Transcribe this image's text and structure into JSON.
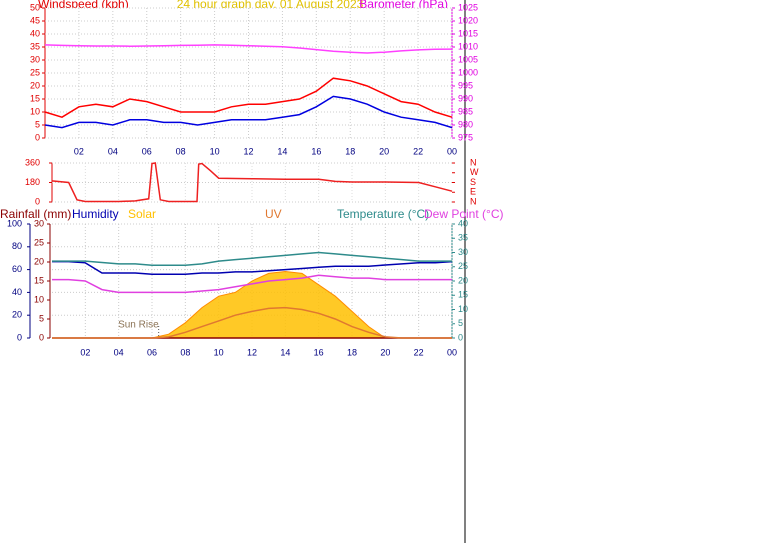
{
  "chart_data": [
    {
      "type": "line",
      "title": "24 hour graph day, 01 August 2023",
      "y_label": "Windspeed (kph)",
      "y2_label": "Barometer (hPa)",
      "x": [
        0,
        1,
        2,
        3,
        4,
        5,
        6,
        7,
        8,
        9,
        10,
        11,
        12,
        13,
        14,
        15,
        16,
        17,
        18,
        19,
        20,
        21,
        22,
        23,
        24
      ],
      "xlim": [
        0,
        24
      ],
      "xticks": [
        {
          "value": 2,
          "label": "02"
        },
        {
          "value": 4,
          "label": "04"
        },
        {
          "value": 6,
          "label": "06"
        },
        {
          "value": 8,
          "label": "08"
        },
        10,
        12,
        14,
        16,
        18,
        20,
        22,
        {
          "value": 24,
          "label": "00"
        }
      ],
      "ylim": [
        0,
        50
      ],
      "yticks": [
        0,
        5,
        10,
        15,
        20,
        25,
        30,
        35,
        40,
        45,
        50
      ],
      "y_color": "#e00000",
      "y2lim": [
        975,
        1025
      ],
      "y2ticks": [
        975,
        980,
        985,
        990,
        995,
        1000,
        1005,
        1010,
        1015,
        1020,
        1025
      ],
      "y2_color": "#e000e0",
      "grid": true,
      "series": [
        {
          "color": "#ff0000",
          "values": [
            10,
            8,
            12,
            13,
            12,
            15,
            14,
            12,
            10,
            10,
            10,
            12,
            13,
            13,
            14,
            15,
            18,
            23,
            22,
            20,
            17,
            14,
            13,
            10,
            8
          ]
        },
        {
          "color": "#0000e0",
          "values": [
            5,
            4,
            6,
            6,
            5,
            7,
            7,
            6,
            6,
            5,
            6,
            7,
            7,
            7,
            8,
            9,
            12,
            16,
            15,
            13,
            10,
            8,
            7,
            6,
            4
          ]
        },
        {
          "color": "#ff40ff",
          "axis": "y2",
          "values": [
            1010.8,
            1010.6,
            1010.5,
            1010.4,
            1010.4,
            1010.3,
            1010.4,
            1010.5,
            1010.6,
            1010.7,
            1010.8,
            1010.7,
            1010.5,
            1010.3,
            1010.1,
            1009.6,
            1009.0,
            1008.4,
            1008.0,
            1007.7,
            1008.0,
            1008.5,
            1008.9,
            1009.1,
            1009.2
          ]
        }
      ]
    },
    {
      "type": "line",
      "x": [
        0,
        1,
        1.5,
        2,
        3,
        4,
        5,
        5.8,
        6,
        6.2,
        6.5,
        7,
        8,
        8.7,
        8.8,
        9,
        9.5,
        10,
        12,
        14,
        16,
        17,
        18,
        20,
        22,
        23,
        24
      ],
      "xlim": [
        0,
        24
      ],
      "ylim": [
        0,
        360
      ],
      "yticks": [
        0,
        180,
        360
      ],
      "y_color": "#e00000",
      "y2lim": [
        0,
        360
      ],
      "y2ticks": [
        {
          "value": 0,
          "label": "N"
        },
        {
          "value": 90,
          "label": "E"
        },
        {
          "value": 180,
          "label": "S"
        },
        {
          "value": 270,
          "label": "W"
        },
        {
          "value": 360,
          "label": "N"
        }
      ],
      "y2_color": "#e00000",
      "grid": true,
      "series": [
        {
          "color": "#ee2020",
          "values": [
            195,
            180,
            20,
            5,
            5,
            5,
            10,
            30,
            355,
            360,
            20,
            5,
            5,
            5,
            350,
            355,
            290,
            220,
            215,
            210,
            210,
            190,
            185,
            185,
            180,
            140,
            100
          ]
        }
      ]
    },
    {
      "type": "line",
      "x": [
        0,
        1,
        2,
        3,
        4,
        5,
        6,
        7,
        8,
        9,
        10,
        11,
        12,
        13,
        14,
        15,
        16,
        17,
        18,
        19,
        20,
        21,
        22,
        23,
        24
      ],
      "xlim": [
        0,
        24
      ],
      "xticks": [
        {
          "value": 2,
          "label": "02"
        },
        {
          "value": 4,
          "label": "04"
        },
        {
          "value": 6,
          "label": "06"
        },
        {
          "value": 8,
          "label": "08"
        },
        10,
        12,
        14,
        16,
        18,
        20,
        22,
        {
          "value": 24,
          "label": "00"
        }
      ],
      "ylim": [
        0,
        100
      ],
      "yticks": [
        0,
        20,
        40,
        60,
        80,
        100
      ],
      "y_color": "#000080",
      "y3lim": [
        0,
        30
      ],
      "y3ticks": [
        0,
        5,
        10,
        15,
        20,
        25,
        30
      ],
      "y3_color": "#8b0000",
      "y2lim": [
        0,
        40
      ],
      "y2ticks": [
        0,
        5,
        10,
        15,
        20,
        25,
        30,
        35,
        40
      ],
      "y2_color": "#2e8b8b",
      "grid": true,
      "annotations": [
        {
          "text": "Sun Rise",
          "x": 6.4
        }
      ],
      "series": [
        {
          "name": "Rainfall (mm)",
          "color": "#8b0000",
          "axis": "y3",
          "values": [
            0,
            0,
            0,
            0,
            0,
            0,
            0,
            0,
            0,
            0,
            0,
            0,
            0,
            0,
            0,
            0,
            0,
            0,
            0,
            0,
            0,
            0,
            0,
            0,
            0
          ]
        },
        {
          "name": "Humidity",
          "color": "#0000b0",
          "values": [
            67,
            67,
            66,
            57,
            57,
            57,
            56,
            56,
            56,
            57,
            57,
            58,
            58,
            59,
            60,
            61,
            62,
            63,
            63,
            63,
            64,
            65,
            66,
            66,
            67
          ]
        },
        {
          "name": "Solar",
          "color": "#ffc000",
          "axis": "y3",
          "area": true,
          "values": [
            0,
            0,
            0,
            0,
            0,
            0,
            0,
            1,
            4,
            8,
            11,
            12,
            15,
            17,
            17.5,
            17,
            14,
            11,
            7,
            3,
            0,
            0,
            0,
            0,
            0
          ]
        },
        {
          "name": "UV",
          "color": "#e07830",
          "axis": "y3",
          "values": [
            0,
            0,
            0,
            0,
            0,
            0,
            0,
            0.3,
            1.5,
            3,
            4.5,
            6,
            7,
            7.8,
            8,
            7.5,
            6.5,
            5,
            3,
            1.5,
            0.3,
            0,
            0,
            0,
            0
          ]
        },
        {
          "name": "Temperature (°C)",
          "color": "#2e8b8b",
          "axis": "y2",
          "values": [
            27,
            27,
            27,
            26.5,
            26,
            26,
            25.5,
            25.5,
            25.5,
            26,
            27,
            27.5,
            28,
            28.5,
            29,
            29.5,
            30,
            29.5,
            29,
            28.5,
            28,
            27.5,
            27,
            27,
            27
          ]
        },
        {
          "name": "Dew Point (°C)",
          "color": "#e040e0",
          "axis": "y2",
          "values": [
            20.5,
            20.5,
            20,
            17,
            16,
            16,
            16,
            16,
            16,
            16.5,
            17,
            18,
            19,
            20,
            20.5,
            21,
            22,
            21.5,
            21,
            21,
            20.5,
            20.5,
            20.5,
            20.5,
            20.5
          ]
        }
      ]
    }
  ]
}
